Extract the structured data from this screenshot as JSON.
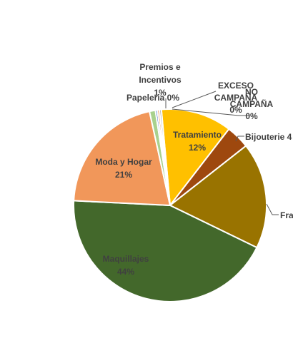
{
  "chart_data": {
    "type": "pie",
    "title": "",
    "slices": [
      {
        "label_lines": [
          "Tratamiento"
        ],
        "pct": "12%",
        "value": 12,
        "color": "#FFC000"
      },
      {
        "label_lines": [
          "Bijouterie 4"
        ],
        "pct": "",
        "value": 4,
        "color": "#9E480E"
      },
      {
        "label_lines": [
          "Fra"
        ],
        "pct": "",
        "value": 18,
        "color": "#997300"
      },
      {
        "label_lines": [
          "Maquillajes"
        ],
        "pct": "44%",
        "value": 44,
        "color": "#43682B"
      },
      {
        "label_lines": [
          "Moda y Hogar"
        ],
        "pct": "21%",
        "value": 21,
        "color": "#F1975A"
      },
      {
        "label_lines": [
          "Premios e",
          "Incentivos"
        ],
        "pct": "1%",
        "value": 1,
        "color": "#A9D18E"
      },
      {
        "label_lines": [
          "Papeleria"
        ],
        "pct": "0%",
        "value": 0,
        "color": "#4472C4"
      },
      {
        "label_lines": [
          "EXCESO",
          "CAMPAÑA"
        ],
        "pct": "0%",
        "value": 0,
        "color": "#ED7D31"
      },
      {
        "label_lines": [
          "NO",
          "CAMPAÑA"
        ],
        "pct": "0%",
        "value": 0,
        "color": "#A5A5A5"
      }
    ]
  }
}
